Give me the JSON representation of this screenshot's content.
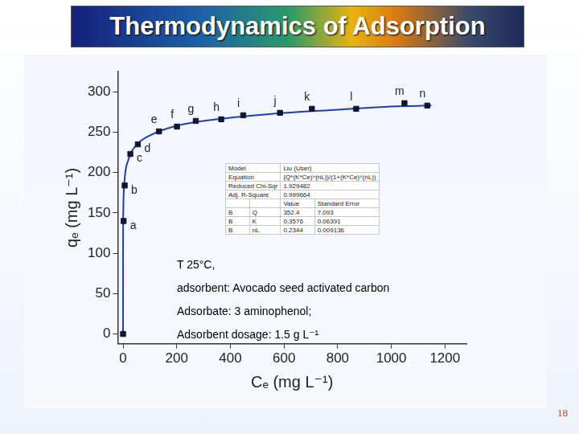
{
  "chart_data": {
    "type": "scatter",
    "title": "Thermodynamics of Adsorption",
    "x_label": "Cₑ (mg L⁻¹)",
    "y_label": "qₑ (mg L⁻¹)",
    "xlim": [
      -20,
      1280
    ],
    "xticks": [
      0,
      200,
      400,
      600,
      800,
      1000,
      1200
    ],
    "ylim": [
      -12,
      325
    ],
    "yticks": [
      0,
      50,
      100,
      150,
      200,
      250,
      300
    ],
    "grid": false,
    "series": [
      {
        "type": "line",
        "color": "#1c3fb8",
        "line_style": "solid",
        "x": [
          0,
          0.01,
          0.05,
          0.2,
          1,
          5,
          20,
          50,
          100,
          200,
          400,
          600,
          800,
          1000,
          1150
        ],
        "values": [
          0,
          74,
          99,
          123,
          155,
          188,
          216,
          234,
          246,
          258,
          268,
          274,
          278,
          282,
          283
        ]
      },
      {
        "type": "scatter",
        "color": "#14142e",
        "marker": "square",
        "x": [
          0,
          2,
          6,
          27,
          55,
          134,
          201,
          271,
          366,
          448,
          585,
          704,
          869,
          1049,
          1134
        ],
        "values": [
          0,
          140,
          184,
          223,
          235,
          251,
          257,
          264,
          266,
          271,
          274,
          279,
          279,
          286,
          283
        ],
        "point_labels": [
          null,
          "a",
          "b",
          "c",
          "d",
          "e",
          "f",
          "g",
          "h",
          "i",
          "j",
          "k",
          "l",
          "m",
          "n"
        ]
      }
    ],
    "fit_table": {
      "info_rows": [
        [
          "Model",
          "Liu (User)"
        ],
        [
          "Equation",
          "(Q*(K*Ce)^(nL))/(1+(K*Ce)^(nL))"
        ],
        [
          "Reduced Chi-Sqr",
          1.929482
        ],
        [
          "Adj. R-Square",
          0.999664
        ]
      ],
      "param_header": [
        "Value",
        "Standard Error"
      ],
      "param_rows": [
        [
          "B",
          "Q",
          352.4,
          7.093
        ],
        [
          "B",
          "K",
          0.3576,
          0.06391
        ],
        [
          "B",
          "nL",
          0.2344,
          0.009136
        ]
      ]
    },
    "annotations": [
      "T 25°C,",
      "adsorbent: Avocado seed activated carbon",
      "Adsorbate: 3 aminophenol;",
      "Adsorbent dosage: 1.5 g L⁻¹"
    ],
    "page_number": 18
  }
}
